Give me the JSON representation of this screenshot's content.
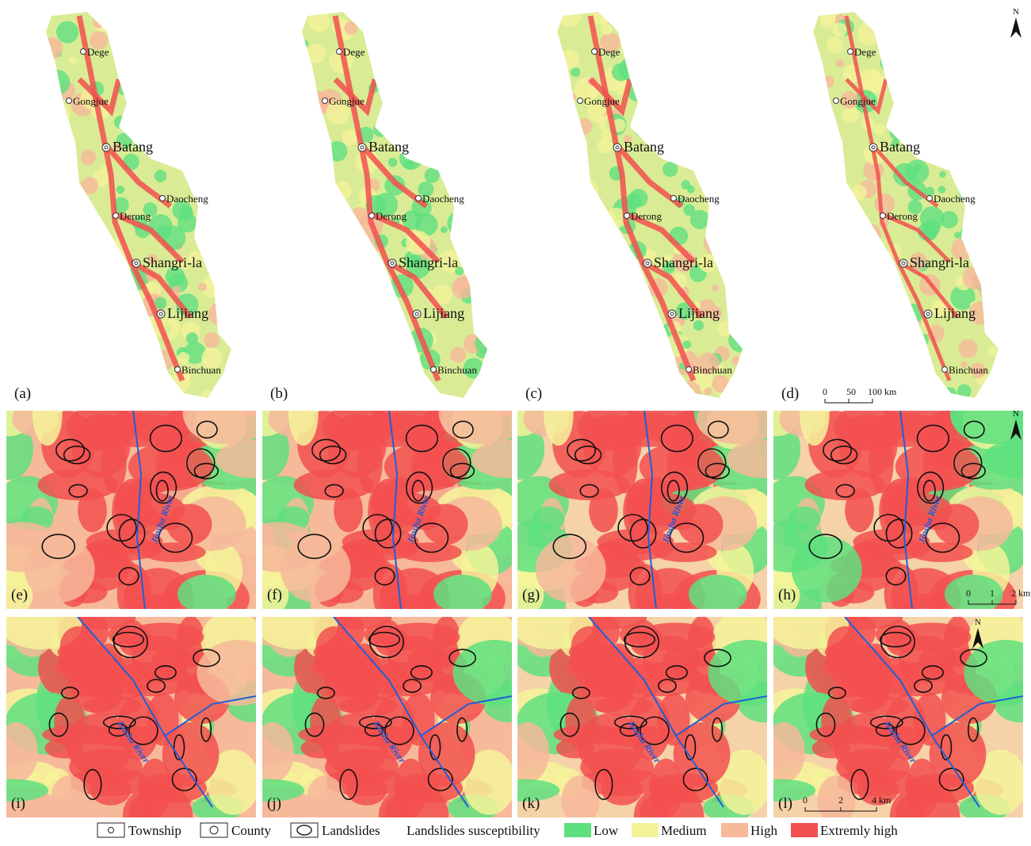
{
  "north": "N",
  "overview": {
    "panels": [
      "(a)",
      "(b)",
      "(c)",
      "(d)"
    ],
    "towns": [
      {
        "label": "Dege",
        "kind": "township"
      },
      {
        "label": "Gongjue",
        "kind": "township"
      },
      {
        "label": "Batang",
        "kind": "county"
      },
      {
        "label": "Daocheng",
        "kind": "township"
      },
      {
        "label": "Derong",
        "kind": "township"
      },
      {
        "label": "Shangri-la",
        "kind": "county"
      },
      {
        "label": "Lijiang",
        "kind": "county"
      },
      {
        "label": "Binchuan",
        "kind": "township"
      }
    ],
    "scale": [
      "0",
      "50",
      "100 km"
    ]
  },
  "detail_1": {
    "panels": [
      "(e)",
      "(f)",
      "(g)",
      "(h)"
    ],
    "river": "Jinsha River",
    "scale": [
      "0",
      "1",
      "2 km"
    ]
  },
  "detail_2": {
    "panels": [
      "(i)",
      "(j)",
      "(k)",
      "(l)"
    ],
    "river": "Jinsha River",
    "scale": [
      "0",
      "2",
      "4 km"
    ]
  },
  "legend": {
    "symbols": [
      "Township",
      "County",
      "Landslides"
    ],
    "title": "Landslides susceptibility",
    "classes": [
      {
        "label": "Low",
        "color": "#5fe07f"
      },
      {
        "label": "Medium",
        "color": "#f4f39a"
      },
      {
        "label": "High",
        "color": "#f6b99a"
      },
      {
        "label": "Extremly high",
        "color": "#f2504f"
      }
    ]
  }
}
